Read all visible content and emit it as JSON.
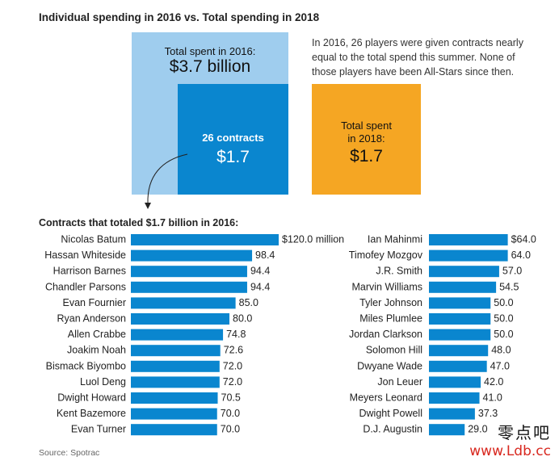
{
  "title": "Individual spending in 2016 vs. Total spending in 2018",
  "note": "In 2016, 26 players were given contracts nearly equal to the total spend this summer. None of those players have been All-Stars since then.",
  "boxes": {
    "b2016_label": "Total spent in 2016:",
    "b2016_value": "$3.7 billion",
    "b26_label": "26 contracts",
    "b26_value": "$1.7",
    "b2018_label_1": "Total spent",
    "b2018_label_2": "in 2018:",
    "b2018_value": "$1.7"
  },
  "subtitle": "Contracts that totaled $1.7 billion in 2016:",
  "source": "Source: Spotrac",
  "watermark": {
    "line1": "零点吧",
    "line2": "www.Ldb.cc"
  },
  "colors": {
    "light_blue": "#9fcdee",
    "blue": "#0a86cf",
    "orange": "#f5a623"
  },
  "chart_data": [
    {
      "type": "bar",
      "orientation": "horizontal",
      "categories": [
        "Nicolas Batum",
        "Hassan Whiteside",
        "Harrison Barnes",
        "Chandler Parsons",
        "Evan Fournier",
        "Ryan Anderson",
        "Allen Crabbe",
        "Joakim Noah",
        "Bismack Biyombo",
        "Luol Deng",
        "Dwight Howard",
        "Kent Bazemore",
        "Evan Turner"
      ],
      "values": [
        120.0,
        98.4,
        94.4,
        94.4,
        85.0,
        80.0,
        74.8,
        72.6,
        72.0,
        72.0,
        70.5,
        70.0,
        70.0
      ],
      "value_labels": [
        "$120.0 million",
        "98.4",
        "94.4",
        "94.4",
        "85.0",
        "80.0",
        "74.8",
        "72.6",
        "72.0",
        "72.0",
        "70.5",
        "70.0",
        "70.0"
      ]
    },
    {
      "type": "bar",
      "orientation": "horizontal",
      "categories": [
        "Ian Mahinmi",
        "Timofey Mozgov",
        "J.R. Smith",
        "Marvin Williams",
        "Tyler Johnson",
        "Miles Plumlee",
        "Jordan Clarkson",
        "Solomon Hill",
        "Dwyane Wade",
        "Jon Leuer",
        "Meyers Leonard",
        "Dwight Powell",
        "D.J. Augustin"
      ],
      "values": [
        64.0,
        64.0,
        57.0,
        54.5,
        50.0,
        50.0,
        50.0,
        48.0,
        47.0,
        42.0,
        41.0,
        37.3,
        29.0
      ],
      "value_labels": [
        "$64.0",
        "64.0",
        "57.0",
        "54.5",
        "50.0",
        "50.0",
        "50.0",
        "48.0",
        "47.0",
        "42.0",
        "41.0",
        "37.3",
        "29.0"
      ]
    }
  ]
}
